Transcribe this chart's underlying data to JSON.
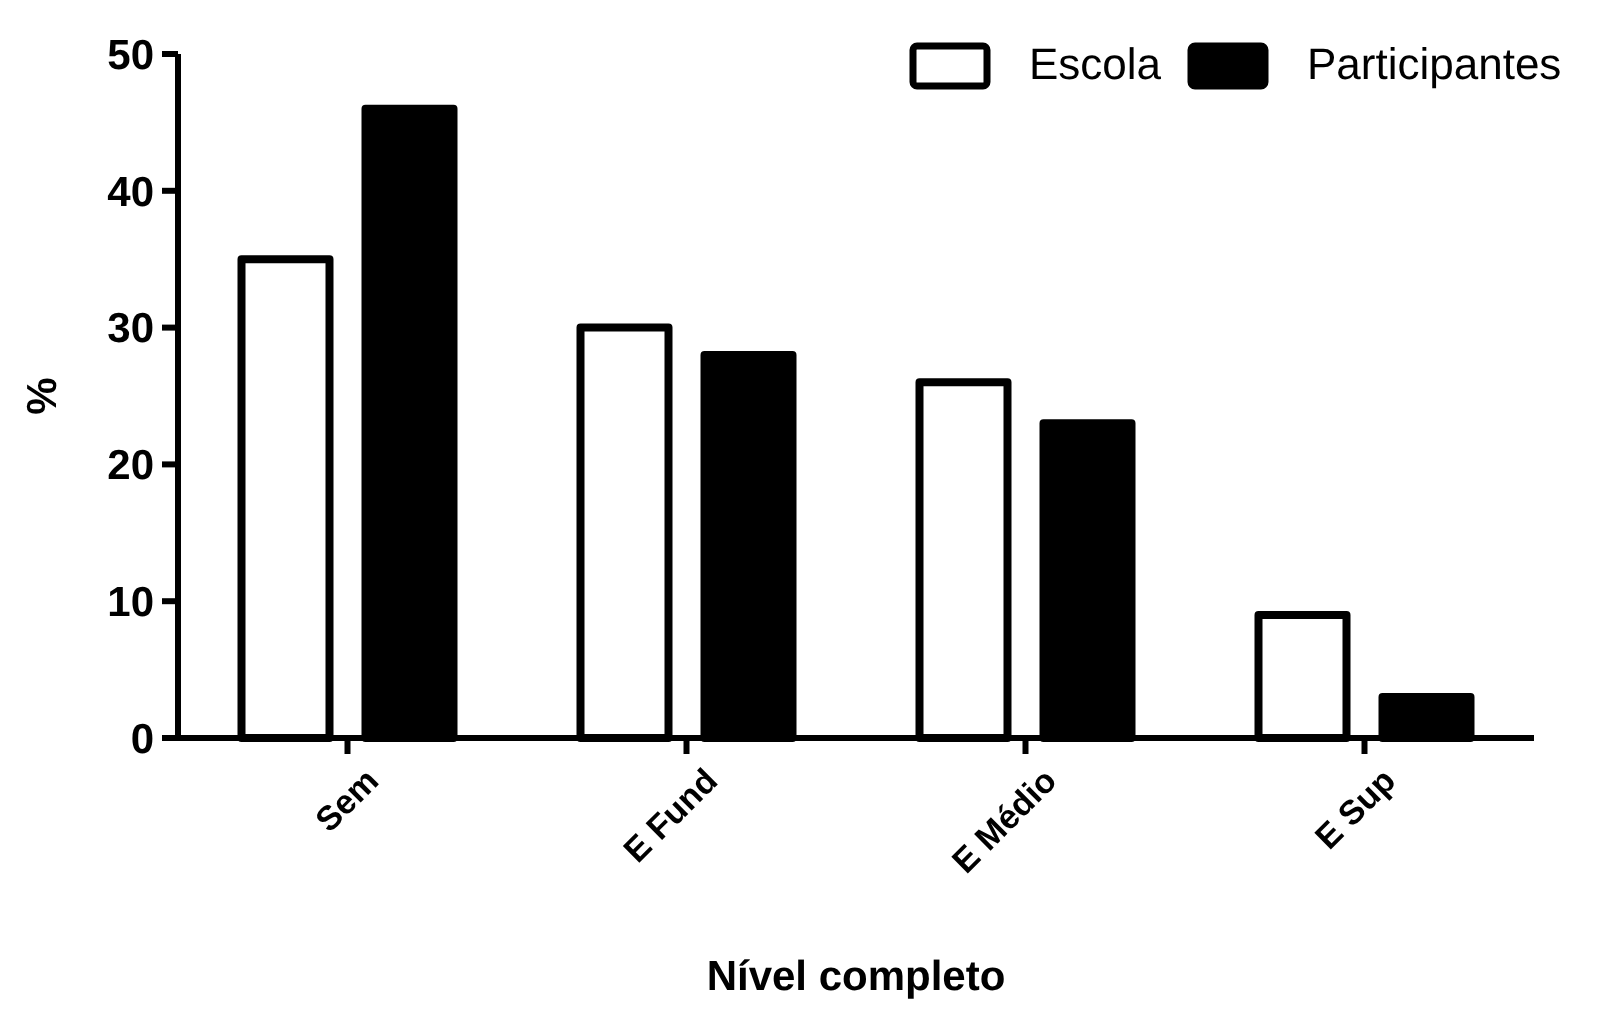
{
  "chart_data": {
    "type": "bar",
    "xlabel": "Nível completo",
    "ylabel": "%",
    "categories": [
      "Sem",
      "E Fund",
      "E Médio",
      "E Sup"
    ],
    "series": [
      {
        "name": "Escola",
        "color": "#ffffff",
        "values": [
          35,
          30,
          26,
          9
        ]
      },
      {
        "name": "Participantes",
        "color": "#000000",
        "values": [
          46,
          28,
          23,
          3
        ]
      }
    ],
    "ylim": [
      0,
      50
    ],
    "yticks": [
      0,
      10,
      20,
      30,
      40,
      50
    ],
    "grid": false,
    "legend": "top right"
  }
}
